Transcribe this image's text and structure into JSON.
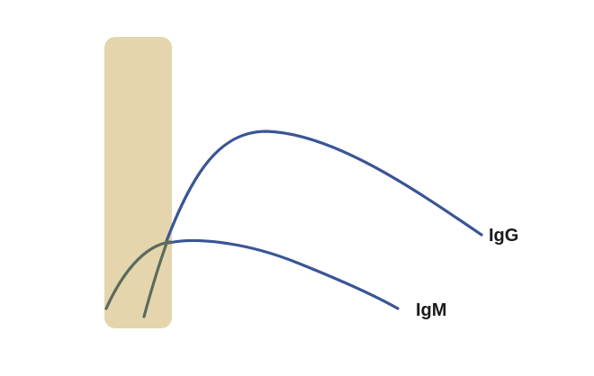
{
  "colors": {
    "background": "#ffffff",
    "window_band": "#e5d5ad",
    "early_segment": "#5b6b5e",
    "igg_curve": "#3a5595",
    "igm_curve": "#3a5595"
  },
  "labels": {
    "igg": "IgG",
    "igm": "IgM"
  }
}
